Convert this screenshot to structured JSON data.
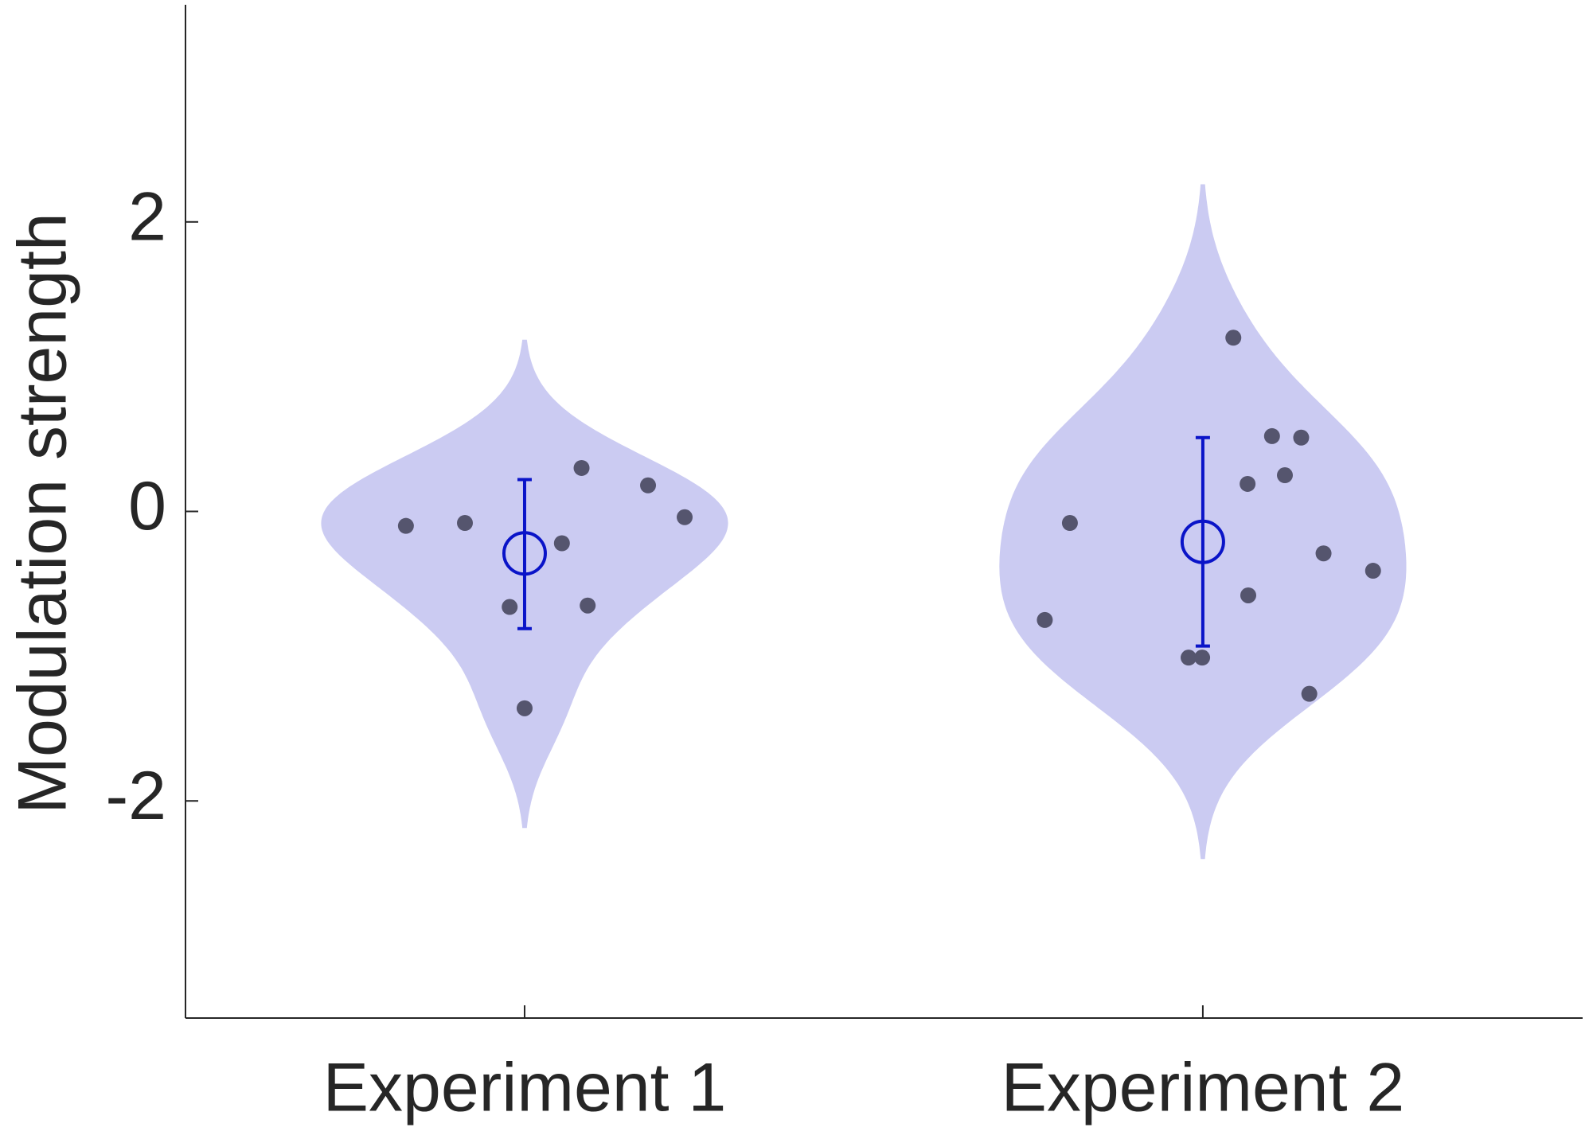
{
  "chart_data": {
    "type": "violin",
    "y_label": "Modulation strength",
    "xlim": [
      0.5,
      2.56
    ],
    "xticks": [
      {
        "value": 1,
        "label": "Experiment 1"
      },
      {
        "value": 2,
        "label": "Experiment 2"
      }
    ],
    "ylim": [
      -3.5,
      3.5
    ],
    "yticks": [
      2,
      0,
      -2
    ],
    "violin_color": "#cbcbf2",
    "point_color": "#55556e",
    "summary_color": "#0a14c8",
    "series": [
      {
        "name": "Experiment 1",
        "position": 1,
        "x": [
          0.825,
          0.912,
          1.055,
          1.084,
          1.182,
          1.236,
          0.978,
          1.093,
          1.0
        ],
        "values": [
          -0.1,
          -0.08,
          -0.22,
          0.3,
          0.18,
          -0.04,
          -0.66,
          -0.65,
          -1.36
        ],
        "mean": -0.29,
        "ci": [
          -0.81,
          0.22
        ]
      },
      {
        "name": "Experiment 2",
        "position": 2,
        "x": [
          2.045,
          2.102,
          2.145,
          2.066,
          2.121,
          1.804,
          2.178,
          2.251,
          2.067,
          1.767,
          1.979,
          1.999,
          2.157
        ],
        "values": [
          1.2,
          0.52,
          0.51,
          0.19,
          0.25,
          -0.08,
          -0.29,
          -0.41,
          -0.58,
          -0.75,
          -1.01,
          -1.01,
          -1.26
        ],
        "mean": -0.21,
        "ci": [
          -0.93,
          0.51
        ]
      }
    ]
  }
}
